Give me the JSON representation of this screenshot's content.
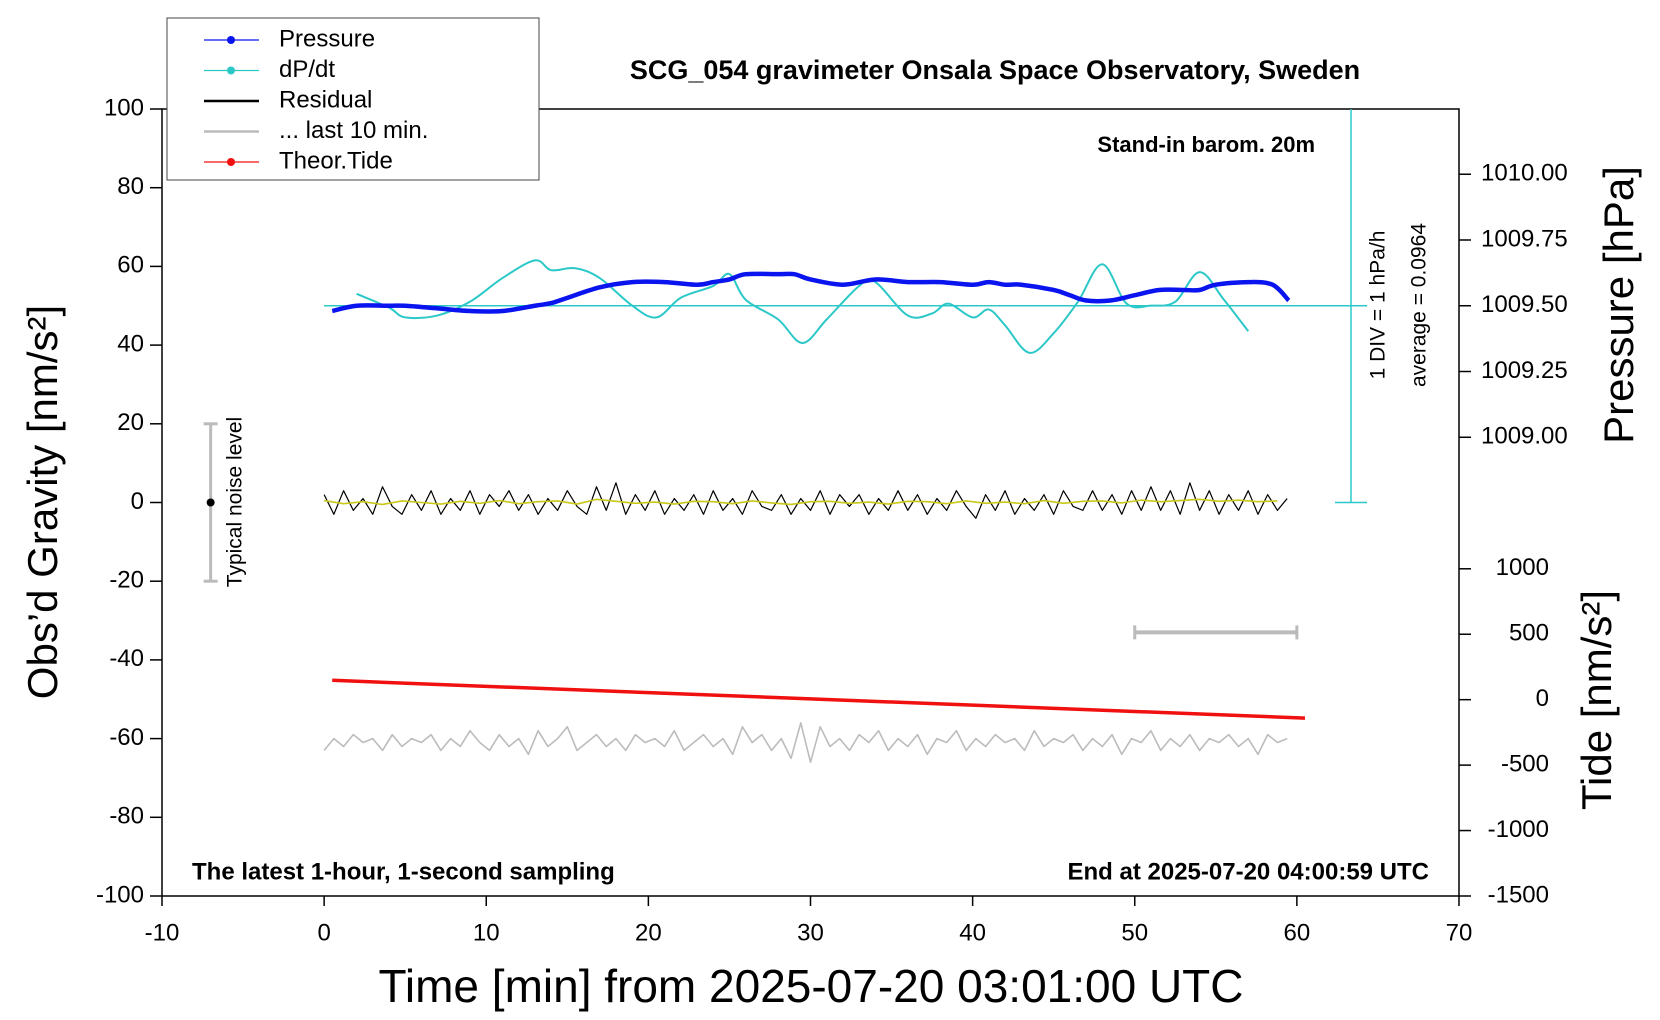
{
  "chart_data": {
    "type": "line",
    "title": "SCG_054 gravimeter Onsala Space Observatory, Sweden",
    "x_label": "Time [min] from 2025-07-20 03:01:00 UTC",
    "y_label": "Obs’d Gravity [nm/s²]",
    "y2_label": "Pressure [hPa]",
    "y3_label": "Tide [nm/s²]",
    "annotations": {
      "barometer": "Stand-in barom. 20m",
      "div": "1 DIV = 1 hPa/h",
      "noise": "Typical noise level",
      "sampling": "The latest 1-hour, 1-second sampling",
      "end": "End at 2025-07-20 04:00:59 UTC"
    },
    "dpdt_average": {
      "value": 0.0964,
      "label": "average = 0.0964"
    },
    "xlim": [
      -10,
      70
    ],
    "xticks": [
      -10,
      0,
      10,
      20,
      30,
      40,
      50,
      60,
      70
    ],
    "ylim": [
      -100,
      100
    ],
    "yticks": [
      -100,
      -80,
      -60,
      -40,
      -20,
      0,
      20,
      40,
      60,
      80,
      100
    ],
    "y2lim": [
      1007.256,
      1010.248
    ],
    "y2ticks": [
      {
        "value": 1009,
        "label": "1009.00"
      },
      1009.25,
      {
        "value": 1009.5,
        "label": "1009.50"
      },
      1009.75,
      {
        "value": 1010,
        "label": "1010.00"
      }
    ],
    "y3lim": [
      -1500,
      4513
    ],
    "y3ticks": [
      -1500,
      -1000,
      -500,
      0,
      500,
      1000
    ],
    "dpdt_lim": [
      -4.9036,
      5.0964
    ],
    "noise_bar": {
      "x": -7,
      "value": 0,
      "error": 20
    },
    "ten_min_bar": {
      "x": [
        50,
        60
      ],
      "y": -33
    },
    "series": [
      {
        "name": "Pressure",
        "color": "#0a14ee",
        "axis": "y2",
        "marker": "dot",
        "smooth": true,
        "x": [
          0.5,
          2,
          4,
          5,
          7,
          9,
          11,
          13,
          14,
          15,
          17,
          19,
          21,
          23,
          24,
          25,
          26,
          28,
          29,
          30,
          32,
          34,
          36,
          38,
          40,
          41,
          42,
          43,
          45,
          46,
          47,
          48.5,
          50,
          51.5,
          53,
          54,
          55,
          57,
          58.5,
          59.5
        ],
        "values": [
          1009.48,
          1009.5,
          1009.5,
          1009.5,
          1009.49,
          1009.48,
          1009.48,
          1009.5,
          1009.51,
          1009.53,
          1009.57,
          1009.59,
          1009.59,
          1009.58,
          1009.59,
          1009.6,
          1009.62,
          1009.62,
          1009.62,
          1009.6,
          1009.58,
          1009.6,
          1009.59,
          1009.59,
          1009.58,
          1009.59,
          1009.58,
          1009.58,
          1009.56,
          1009.54,
          1009.52,
          1009.52,
          1009.54,
          1009.56,
          1009.56,
          1009.56,
          1009.58,
          1009.59,
          1009.58,
          1009.52
        ]
      },
      {
        "name": "dP/dt",
        "color": "#2cc8c8",
        "axis": "dpdt",
        "marker": "dot",
        "smooth": true,
        "x": [
          2,
          4,
          5,
          7,
          9,
          11,
          13,
          14,
          15.5,
          17,
          19,
          20.5,
          22,
          24,
          25,
          26,
          28,
          29.5,
          31,
          33,
          34,
          36,
          37.5,
          38.5,
          40,
          41,
          42,
          43.5,
          45,
          46.5,
          48,
          49.5,
          51,
          52.5,
          54,
          55.5,
          57
        ],
        "values": [
          0.4,
          0.05,
          -0.2,
          -0.15,
          0.2,
          0.8,
          1.25,
          1.0,
          1.05,
          0.8,
          0.1,
          -0.2,
          0.3,
          0.6,
          0.9,
          0.25,
          -0.25,
          -0.85,
          -0.25,
          0.6,
          0.7,
          -0.15,
          -0.1,
          0.15,
          -0.2,
          0,
          -0.4,
          -1.1,
          -0.6,
          0.2,
          1.15,
          0.15,
          0.1,
          0.2,
          0.95,
          0.25,
          -0.55
        ]
      },
      {
        "name": "Residual",
        "color": "#000000",
        "x": [
          0,
          0.6,
          1.2,
          1.8,
          2.4,
          3,
          3.6,
          4.2,
          4.8,
          5.4,
          6,
          6.6,
          7.2,
          7.8,
          8.4,
          9,
          9.6,
          10.2,
          10.8,
          11.4,
          12,
          12.6,
          13.2,
          13.8,
          14.4,
          15,
          15.6,
          16.2,
          16.8,
          17.4,
          18,
          18.6,
          19.2,
          19.8,
          20.4,
          21,
          21.6,
          22.2,
          22.8,
          23.4,
          24,
          24.6,
          25.2,
          25.8,
          26.4,
          27,
          27.6,
          28.2,
          28.8,
          29.4,
          30,
          30.6,
          31.2,
          31.8,
          32.4,
          33,
          33.6,
          34.2,
          34.8,
          35.4,
          36,
          36.6,
          37.2,
          37.8,
          38.4,
          39,
          39.6,
          40.2,
          40.8,
          41.4,
          42,
          42.6,
          43.2,
          43.8,
          44.4,
          45,
          45.6,
          46.2,
          46.8,
          47.4,
          48,
          48.6,
          49.2,
          49.8,
          50.4,
          51,
          51.6,
          52.2,
          52.8,
          53.4,
          54,
          54.6,
          55.2,
          55.8,
          56.4,
          57,
          57.6,
          58.2,
          58.8,
          59.4
        ],
        "values": [
          2,
          -3,
          3,
          -2,
          1,
          -3,
          4,
          -1,
          -3,
          2,
          -2,
          3,
          -3,
          1,
          -2,
          3,
          -3,
          2,
          -1,
          3,
          -2,
          2,
          -3,
          1,
          -2,
          3,
          -1,
          -3,
          4,
          -2,
          5,
          -3,
          2,
          -2,
          3,
          -3,
          1,
          -2,
          2,
          -3,
          3,
          -2,
          1,
          -3,
          3,
          -1,
          -2,
          2,
          -3,
          1,
          -2,
          3,
          -3,
          2,
          -1,
          2,
          -3,
          1,
          -2,
          3,
          -2,
          2,
          -3,
          1,
          -2,
          3,
          -1,
          -4,
          2,
          -2,
          3,
          -3,
          1,
          -2,
          2,
          -3,
          3,
          -1,
          -2,
          3,
          -2,
          2,
          -3,
          3,
          -2,
          4,
          -2,
          3,
          -3,
          5,
          -2,
          3,
          -3,
          2,
          -2,
          3,
          -3,
          2,
          -2,
          1
        ]
      },
      {
        "name": "... last 10 min.",
        "color": "#bcbcbc",
        "x": [
          0,
          0.6,
          1.2,
          1.8,
          2.4,
          3,
          3.6,
          4.2,
          4.8,
          5.4,
          6,
          6.6,
          7.2,
          7.8,
          8.4,
          9,
          9.6,
          10.2,
          10.8,
          11.4,
          12,
          12.6,
          13.2,
          13.8,
          14.4,
          15,
          15.6,
          16.2,
          16.8,
          17.4,
          18,
          18.6,
          19.2,
          19.8,
          20.4,
          21,
          21.6,
          22.2,
          22.8,
          23.4,
          24,
          24.6,
          25.2,
          25.8,
          26.4,
          27,
          27.6,
          28.2,
          28.8,
          29.4,
          30,
          30.6,
          31.2,
          31.8,
          32.4,
          33,
          33.6,
          34.2,
          34.8,
          35.4,
          36,
          36.6,
          37.2,
          37.8,
          38.4,
          39,
          39.6,
          40.2,
          40.8,
          41.4,
          42,
          42.6,
          43.2,
          43.8,
          44.4,
          45,
          45.6,
          46.2,
          46.8,
          47.4,
          48,
          48.6,
          49.2,
          49.8,
          50.4,
          51,
          51.6,
          52.2,
          52.8,
          53.4,
          54,
          54.6,
          55.2,
          55.8,
          56.4,
          57,
          57.6,
          58.2,
          58.8,
          59.4
        ],
        "values": [
          -63,
          -60,
          -62,
          -59,
          -61,
          -60,
          -63,
          -59,
          -62,
          -60,
          -61,
          -59,
          -63,
          -60,
          -62,
          -58,
          -61,
          -63,
          -59,
          -62,
          -60,
          -64,
          -58,
          -62,
          -60,
          -57,
          -63,
          -61,
          -59,
          -62,
          -60,
          -63,
          -59,
          -61,
          -60,
          -62,
          -58,
          -63,
          -61,
          -59,
          -62,
          -60,
          -64,
          -57,
          -61,
          -59,
          -63,
          -60,
          -65,
          -56,
          -66,
          -57,
          -62,
          -60,
          -63,
          -59,
          -61,
          -58,
          -63,
          -60,
          -62,
          -59,
          -64,
          -60,
          -61,
          -58,
          -63,
          -60,
          -62,
          -59,
          -61,
          -60,
          -63,
          -58,
          -62,
          -60,
          -61,
          -59,
          -63,
          -60,
          -62,
          -59,
          -64,
          -60,
          -61,
          -58,
          -63,
          -60,
          -62,
          -59,
          -63,
          -60,
          -61,
          -59,
          -62,
          -60,
          -64,
          -59,
          -61,
          -60
        ]
      },
      {
        "name": "Theor.Tide",
        "color": "#f01010",
        "axis": "y3",
        "marker": "dot",
        "x": [
          0.5,
          10,
          20,
          30,
          40,
          50,
          60.5
        ],
        "values": [
          148,
          102,
          54,
          6,
          -42,
          -90,
          -141
        ]
      },
      {
        "color": "#c8c818",
        "x": [
          0,
          1.2,
          2.4,
          3.6,
          4.8,
          6,
          7.2,
          8.4,
          9.6,
          10.8,
          12,
          13.2,
          14.4,
          15.6,
          16.8,
          18,
          19.2,
          20.4,
          21.6,
          22.8,
          24,
          25.2,
          26.4,
          27.6,
          28.8,
          30,
          31.2,
          32.4,
          33.6,
          34.8,
          36,
          37.2,
          38.4,
          39.6,
          40.8,
          42,
          43.2,
          44.4,
          45.6,
          46.8,
          48,
          49.2,
          50.4,
          51.6,
          52.8,
          54,
          55.2,
          56.4,
          57.6,
          58.8
        ],
        "values": [
          0.5,
          -0.3,
          0.2,
          -0.5,
          0.4,
          0,
          -0.4,
          0.3,
          -0.2,
          0.5,
          -0.3,
          0.2,
          0.4,
          -0.4,
          0.8,
          0.3,
          -0.2,
          0.1,
          -0.4,
          0.3,
          0.2,
          -0.3,
          0.4,
          -0.1,
          -0.5,
          0.2,
          0.3,
          -0.2,
          0.1,
          -0.4,
          0.3,
          0.2,
          -0.3,
          0.4,
          -0.2,
          0.1,
          -0.3,
          0.5,
          -0.2,
          0.3,
          0.4,
          -0.1,
          0.6,
          0.2,
          0.5,
          0.8,
          0.3,
          0.6,
          0.2,
          0.4
        ]
      }
    ]
  }
}
